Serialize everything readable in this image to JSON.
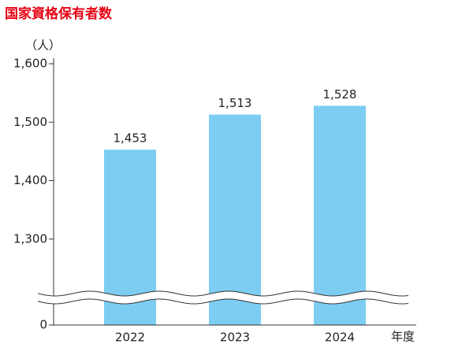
{
  "chart_data": {
    "type": "bar",
    "title": "国家資格保有者数",
    "y_unit": "（人）",
    "x_label": "年度",
    "categories": [
      "2022",
      "2023",
      "2024"
    ],
    "values": [
      1453,
      1513,
      1528
    ],
    "value_labels": [
      "1,453",
      "1,513",
      "1,528"
    ],
    "color": "#7dcdf2",
    "ylim": [
      0,
      1600
    ],
    "yticks": [
      0,
      {
        "value": 1300,
        "label": "1,300"
      },
      {
        "value": 1400,
        "label": "1,400"
      },
      {
        "value": 1500,
        "label": "1,500"
      },
      {
        "value": 1600,
        "label": "1,600"
      }
    ],
    "axis_break": true
  }
}
